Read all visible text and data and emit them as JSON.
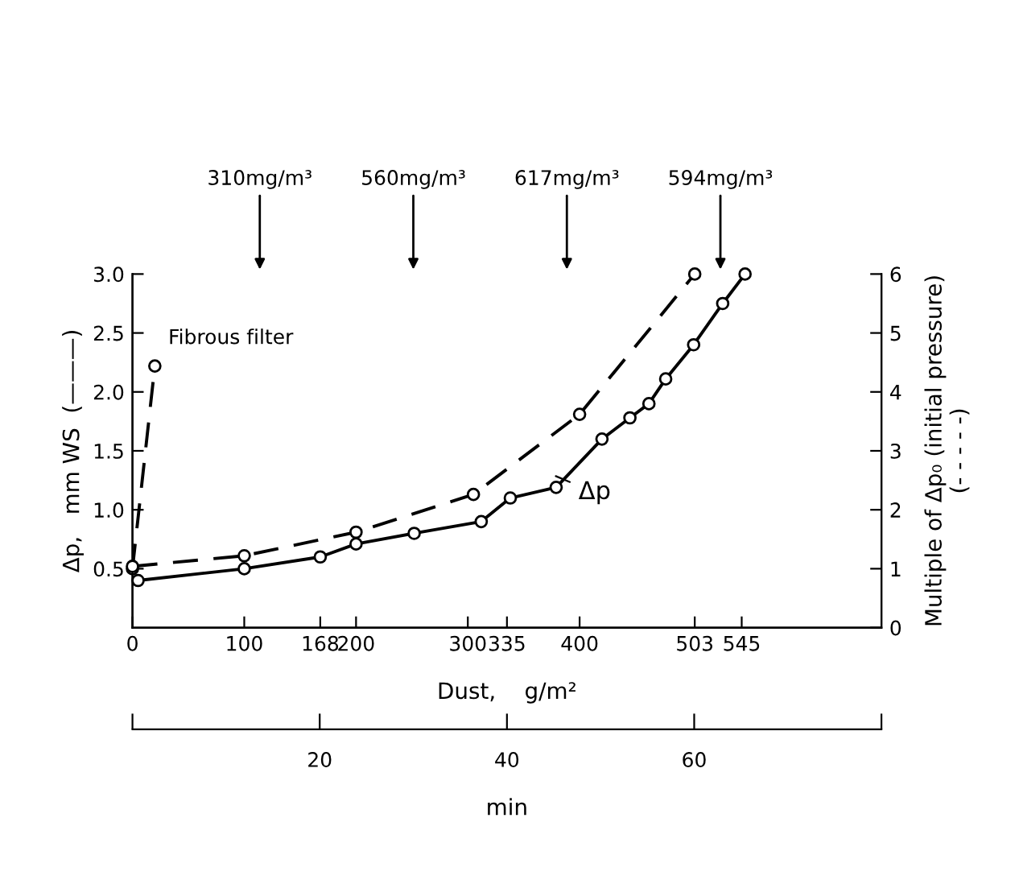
{
  "chart_data": {
    "type": "line",
    "xlabel": "Dust,    g/m²",
    "ylabel": "Δp,   mm WS  (———)",
    "y2label": "Multiple of Δp₀ (initial pressure)\n(- - - - -)",
    "x2label": "min",
    "xlim": [
      0,
      670
    ],
    "xticks": [
      0,
      100,
      168,
      200,
      300,
      335,
      400,
      503,
      545
    ],
    "ylim": [
      0,
      3.0
    ],
    "yticks": [
      {
        "value": 0.5,
        "label": "0.5"
      },
      {
        "value": 1,
        "label": "1.0"
      },
      {
        "value": 1.5,
        "label": "1.5"
      },
      {
        "value": 2,
        "label": "2.0"
      },
      {
        "value": 2.5,
        "label": "2.5"
      },
      {
        "value": 3,
        "label": "3.0"
      }
    ],
    "y2lim": [
      0,
      6
    ],
    "y2ticks": [
      0,
      1,
      2,
      3,
      4,
      5,
      6
    ],
    "x2lim": [
      0,
      80
    ],
    "x2ticks": [
      {
        "value": 0,
        "label": null
      },
      20,
      40,
      60,
      {
        "value": 80,
        "label": null
      }
    ],
    "marker": "circle",
    "grid": false,
    "legend": false,
    "series": [
      {
        "color": "#000000",
        "line_style": "solid",
        "x": [
          5,
          100,
          168,
          200,
          252,
          312,
          338,
          379,
          420,
          445,
          462,
          477,
          502,
          528,
          548
        ],
        "values": [
          0.4,
          0.5,
          0.6,
          0.71,
          0.8,
          0.9,
          1.1,
          1.19,
          1.6,
          1.78,
          1.9,
          2.11,
          2.4,
          2.75,
          3.0
        ]
      },
      {
        "color": "#000000",
        "line_style": "dashed",
        "axis": "y2",
        "x": [
          0,
          100,
          200,
          305,
          400,
          503
        ],
        "values": [
          1.04,
          1.22,
          1.62,
          2.26,
          3.62,
          6.0
        ]
      },
      {
        "color": "#000000",
        "line_style": "dashed",
        "x": [
          0,
          20
        ],
        "values": [
          0.5,
          2.22
        ]
      }
    ],
    "annotations": [
      "310mg/m³",
      "560mg/m³",
      "617mg/m³",
      "594mg/m³",
      {
        "text": "Δp",
        "x": 375,
        "y": 1.3
      },
      {
        "text": "Fibrous filter",
        "x": 20,
        "y": 2.22
      }
    ]
  }
}
